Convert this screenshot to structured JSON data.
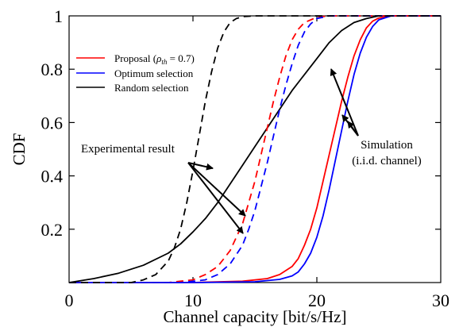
{
  "chart_data": {
    "type": "line",
    "xlabel": "Channel capacity [bit/s/Hz]",
    "ylabel": "CDF",
    "xlim": [
      0,
      30
    ],
    "ylim": [
      0,
      1
    ],
    "xticks": [
      "0",
      "10",
      "20",
      "30"
    ],
    "yticks": [
      "0.2",
      "0.4",
      "0.6",
      "0.8",
      "1"
    ],
    "grid": false,
    "legend_position": "top-left",
    "legend": [
      {
        "label_main": "Proposal (",
        "label_rho": "ρ",
        "label_sub": "th",
        "label_tail": " = 0.7)",
        "color": "#ff0000",
        "style": "solid"
      },
      {
        "label": "Optimum selection",
        "color": "#0000ff",
        "style": "solid"
      },
      {
        "label": "Random selection",
        "color": "#000000",
        "style": "solid"
      }
    ],
    "annotations": {
      "experimental": "Experimental result",
      "simulation_line1": "Simulation",
      "simulation_line2": "(i.i.d. channel)"
    },
    "series": [
      {
        "name": "Proposal (ρth = 0.7)",
        "kind": "simulation",
        "color": "#ff0000",
        "dash": "solid",
        "x": [
          0,
          10,
          14,
          16,
          17,
          18,
          18.5,
          19,
          19.5,
          20,
          20.5,
          21,
          21.5,
          22,
          22.5,
          23,
          23.5,
          24,
          24.5,
          25,
          26,
          30
        ],
        "y": [
          0,
          0,
          0.005,
          0.015,
          0.03,
          0.06,
          0.09,
          0.14,
          0.2,
          0.28,
          0.38,
          0.48,
          0.58,
          0.68,
          0.77,
          0.85,
          0.91,
          0.955,
          0.98,
          0.992,
          1.0,
          1.0
        ]
      },
      {
        "name": "Optimum selection",
        "kind": "simulation",
        "color": "#0000ff",
        "dash": "solid",
        "x": [
          0,
          10,
          15,
          17,
          18,
          18.5,
          19,
          19.5,
          20,
          20.5,
          21,
          21.5,
          22,
          22.5,
          23,
          23.5,
          24,
          24.5,
          25,
          26,
          30
        ],
        "y": [
          0,
          0,
          0.003,
          0.012,
          0.025,
          0.04,
          0.07,
          0.11,
          0.17,
          0.25,
          0.35,
          0.46,
          0.57,
          0.68,
          0.78,
          0.86,
          0.92,
          0.96,
          0.985,
          1.0,
          1.0
        ]
      },
      {
        "name": "Random selection",
        "kind": "simulation",
        "color": "#000000",
        "dash": "solid",
        "x": [
          0,
          2,
          4,
          6,
          8,
          9,
          10,
          11,
          12,
          13,
          14,
          15,
          16,
          17,
          18,
          19,
          20,
          21,
          22,
          23,
          24,
          25,
          26,
          30
        ],
        "y": [
          0,
          0.015,
          0.035,
          0.065,
          0.11,
          0.145,
          0.19,
          0.24,
          0.3,
          0.37,
          0.44,
          0.51,
          0.58,
          0.65,
          0.72,
          0.78,
          0.84,
          0.9,
          0.945,
          0.975,
          0.99,
          1.0,
          1.0,
          1.0
        ]
      },
      {
        "name": "Proposal (ρth = 0.7)",
        "kind": "experimental",
        "color": "#ff0000",
        "dash": "dashed",
        "x": [
          0,
          8,
          10,
          11,
          12,
          13,
          14,
          14.5,
          15,
          15.5,
          16,
          16.5,
          17,
          17.5,
          18,
          18.5,
          19,
          20,
          21,
          22,
          30
        ],
        "y": [
          0,
          0,
          0.01,
          0.03,
          0.06,
          0.12,
          0.22,
          0.3,
          0.38,
          0.48,
          0.58,
          0.68,
          0.77,
          0.85,
          0.91,
          0.95,
          0.975,
          0.995,
          1.0,
          1.0,
          1.0
        ]
      },
      {
        "name": "Optimum selection",
        "kind": "experimental",
        "color": "#0000ff",
        "dash": "dashed",
        "x": [
          0,
          9,
          11,
          12,
          13,
          14,
          14.5,
          15,
          15.5,
          16,
          16.5,
          17,
          17.5,
          18,
          18.5,
          19,
          19.5,
          20,
          21,
          22,
          30
        ],
        "y": [
          0,
          0,
          0.01,
          0.03,
          0.07,
          0.14,
          0.2,
          0.27,
          0.36,
          0.45,
          0.55,
          0.65,
          0.74,
          0.82,
          0.89,
          0.94,
          0.97,
          0.99,
          1.0,
          1.0,
          1.0
        ]
      },
      {
        "name": "Random selection",
        "kind": "experimental",
        "color": "#000000",
        "dash": "dashed",
        "x": [
          0,
          5,
          6,
          7,
          8,
          8.5,
          9,
          9.5,
          10,
          10.5,
          11,
          11.5,
          12,
          12.5,
          13,
          13.5,
          14,
          15,
          16,
          30
        ],
        "y": [
          0,
          0,
          0.01,
          0.03,
          0.08,
          0.13,
          0.2,
          0.3,
          0.42,
          0.55,
          0.68,
          0.79,
          0.88,
          0.94,
          0.975,
          0.99,
          0.997,
          1.0,
          1.0,
          1.0
        ]
      }
    ]
  }
}
